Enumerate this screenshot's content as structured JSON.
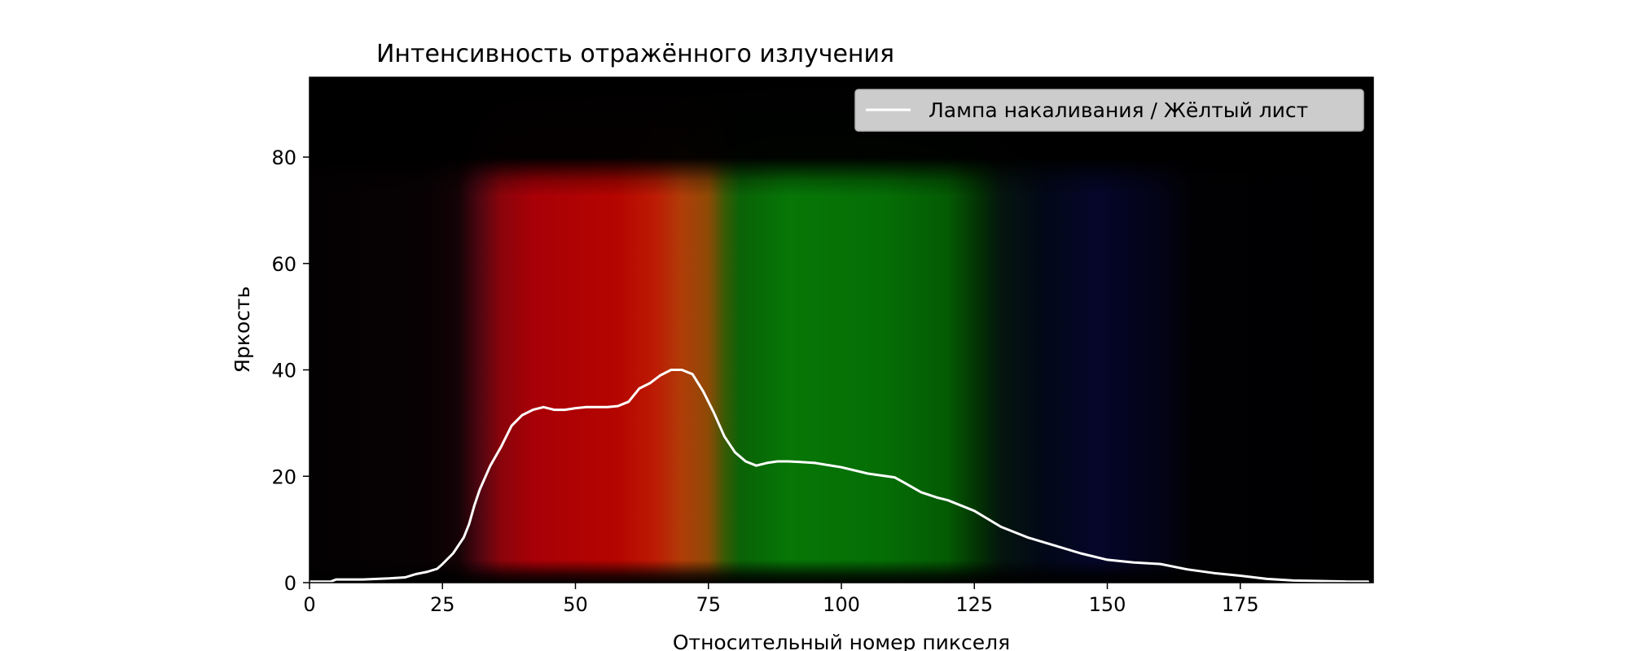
{
  "chart_data": {
    "type": "line",
    "title": "Интенсивность отражённого излучения",
    "xlabel": "Относительный номер пикселя",
    "ylabel": "Яркость",
    "xlim": [
      0,
      200
    ],
    "ylim": [
      0,
      95
    ],
    "x_ticks": [
      0,
      25,
      50,
      75,
      100,
      125,
      150,
      175
    ],
    "y_ticks": [
      0,
      20,
      40,
      60,
      80
    ],
    "grid": false,
    "legend_position": "top-right",
    "background": "spectrum image (black – red – orange – green – dark blue – black)",
    "series": [
      {
        "name": "Лампа накаливания / Жёлтый лист",
        "color": "#ffffff",
        "x": [
          0,
          4,
          5,
          10,
          15,
          18,
          20,
          21,
          22,
          24,
          25,
          27,
          29,
          30,
          31,
          32,
          34,
          36,
          38,
          40,
          42,
          44,
          46,
          48,
          50,
          52,
          54,
          56,
          58,
          60,
          62,
          64,
          66,
          68,
          70,
          72,
          74,
          76,
          78,
          80,
          82,
          84,
          86,
          88,
          90,
          92,
          95,
          100,
          105,
          110,
          112,
          115,
          118,
          120,
          125,
          130,
          135,
          140,
          145,
          150,
          155,
          160,
          165,
          170,
          175,
          180,
          185,
          190,
          195,
          199
        ],
        "y": [
          0.2,
          0.2,
          0.6,
          0.6,
          0.8,
          1.0,
          1.6,
          1.8,
          2.0,
          2.6,
          3.5,
          5.5,
          8.5,
          11.0,
          14.5,
          17.5,
          22.0,
          25.5,
          29.5,
          31.5,
          32.5,
          33.0,
          32.5,
          32.5,
          32.8,
          33.0,
          33.0,
          33.0,
          33.2,
          34.0,
          36.5,
          37.5,
          39.0,
          40.0,
          40.0,
          39.2,
          36.0,
          32.0,
          27.5,
          24.5,
          22.8,
          22.0,
          22.5,
          22.8,
          22.8,
          22.7,
          22.5,
          21.7,
          20.5,
          19.8,
          18.7,
          17.0,
          16.0,
          15.5,
          13.5,
          10.5,
          8.5,
          7.0,
          5.5,
          4.3,
          3.8,
          3.5,
          2.5,
          1.8,
          1.3,
          0.7,
          0.4,
          0.3,
          0.2,
          0.2
        ]
      }
    ]
  }
}
